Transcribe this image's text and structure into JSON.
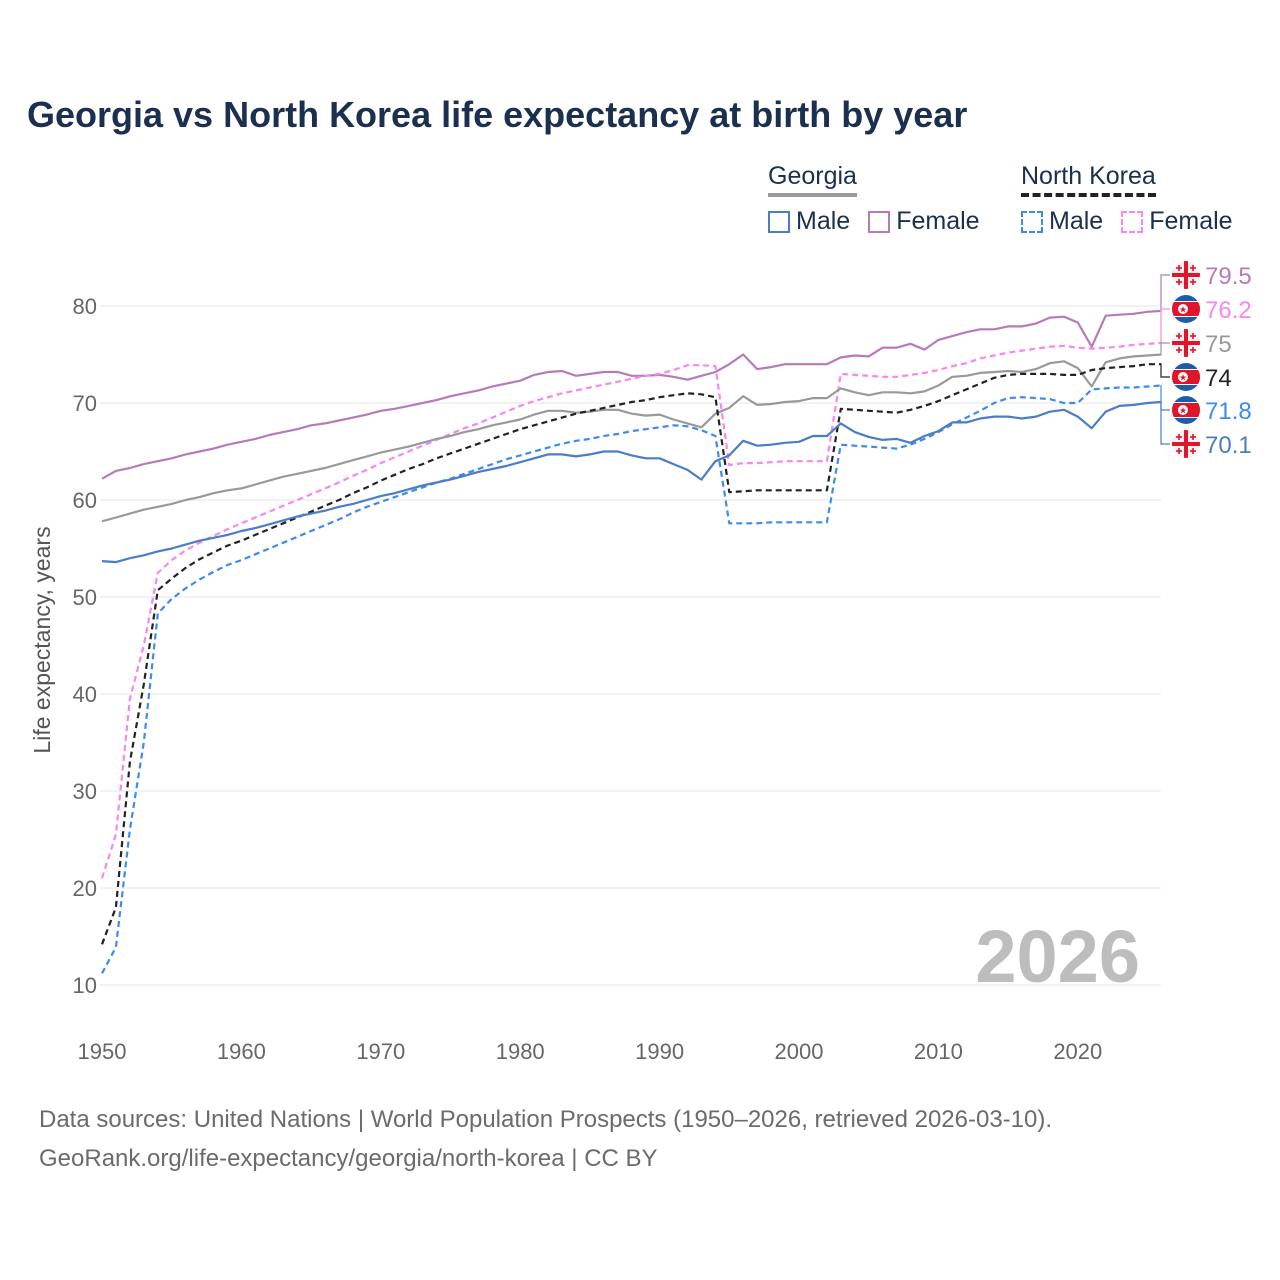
{
  "chart_data": {
    "type": "line",
    "title": "Georgia vs North Korea life expectancy at birth by year",
    "xlabel": "",
    "ylabel": "Life expectancy, years",
    "xlim": [
      1950,
      2026
    ],
    "ylim": [
      10,
      85
    ],
    "x_ticks": [
      "1950",
      "1960",
      "1970",
      "1980",
      "1990",
      "2000",
      "2010",
      "2020"
    ],
    "y_ticks": [
      "10",
      "20",
      "30",
      "40",
      "50",
      "60",
      "70",
      "80"
    ],
    "grid": true,
    "watermark_year": "2026",
    "legend": {
      "placement": "top-right",
      "groups": [
        {
          "name": "Georgia",
          "items": [
            "Male",
            "Female"
          ]
        },
        {
          "name": "North Korea",
          "items": [
            "Male",
            "Female"
          ]
        }
      ]
    },
    "x_start": 1950,
    "series": [
      {
        "name": "Georgia Female",
        "country": "Georgia",
        "color": "#b77ab8",
        "dashed": false,
        "end_label": "79.5",
        "values": [
          62.2,
          63.0,
          63.3,
          63.7,
          64.0,
          64.3,
          64.7,
          65.0,
          65.3,
          65.7,
          66.0,
          66.3,
          66.7,
          67.0,
          67.3,
          67.7,
          67.9,
          68.2,
          68.5,
          68.8,
          69.2,
          69.4,
          69.7,
          70.0,
          70.3,
          70.7,
          71.0,
          71.3,
          71.7,
          72.0,
          72.3,
          72.9,
          73.2,
          73.3,
          72.8,
          73.0,
          73.2,
          73.2,
          72.8,
          72.8,
          72.9,
          72.7,
          72.4,
          72.8,
          73.2,
          74.0,
          75.0,
          73.5,
          73.7,
          74.0,
          74.0,
          74.0,
          74.0,
          74.7,
          74.9,
          74.8,
          75.7,
          75.7,
          76.1,
          75.5,
          76.5,
          76.9,
          77.3,
          77.6,
          77.6,
          77.9,
          77.9,
          78.2,
          78.8,
          78.9,
          78.3,
          75.8,
          79.0,
          79.1,
          79.2,
          79.4,
          79.5
        ]
      },
      {
        "name": "North Korea Female",
        "country": "North Korea",
        "color": "#f986f0",
        "dashed": true,
        "end_label": "76.2",
        "values": [
          21.0,
          25.5,
          39.5,
          45.0,
          52.5,
          53.8,
          54.8,
          55.6,
          56.3,
          57.0,
          57.6,
          58.2,
          58.8,
          59.4,
          60.0,
          60.6,
          61.2,
          61.8,
          62.5,
          63.1,
          63.8,
          64.4,
          65.0,
          65.6,
          66.2,
          66.8,
          67.4,
          67.9,
          68.5,
          69.1,
          69.7,
          70.2,
          70.6,
          71.0,
          71.3,
          71.6,
          71.9,
          72.2,
          72.5,
          72.8,
          73.0,
          73.4,
          73.9,
          73.9,
          73.8,
          63.6,
          63.8,
          63.8,
          63.9,
          64.0,
          64.0,
          64.0,
          64.0,
          73.0,
          72.9,
          72.8,
          72.7,
          72.7,
          72.9,
          73.1,
          73.4,
          73.8,
          74.1,
          74.6,
          74.9,
          75.2,
          75.4,
          75.6,
          75.8,
          75.9,
          75.7,
          75.6,
          75.7,
          75.8,
          76.0,
          76.1,
          76.2
        ]
      },
      {
        "name": "Georgia",
        "country": "Georgia",
        "color": "#999999",
        "dashed": false,
        "end_label": "75",
        "values": [
          57.8,
          58.2,
          58.6,
          59.0,
          59.3,
          59.6,
          60.0,
          60.3,
          60.7,
          61.0,
          61.2,
          61.6,
          62.0,
          62.4,
          62.7,
          63.0,
          63.3,
          63.7,
          64.1,
          64.5,
          64.9,
          65.2,
          65.5,
          65.9,
          66.3,
          66.6,
          67.0,
          67.3,
          67.7,
          68.0,
          68.3,
          68.8,
          69.2,
          69.2,
          69.0,
          69.1,
          69.3,
          69.3,
          68.9,
          68.7,
          68.8,
          68.3,
          67.9,
          67.5,
          68.9,
          69.5,
          70.7,
          69.8,
          69.9,
          70.1,
          70.2,
          70.5,
          70.5,
          71.5,
          71.1,
          70.8,
          71.1,
          71.1,
          71.0,
          71.2,
          71.8,
          72.7,
          72.8,
          73.1,
          73.2,
          73.3,
          73.2,
          73.5,
          74.1,
          74.3,
          73.6,
          71.7,
          74.2,
          74.6,
          74.8,
          74.9,
          75.0
        ]
      },
      {
        "name": "North Korea",
        "country": "North Korea",
        "color": "#222222",
        "dashed": true,
        "end_label": "74",
        "values": [
          14.2,
          18.0,
          33.0,
          41.0,
          50.7,
          51.9,
          53.0,
          53.9,
          54.6,
          55.3,
          55.8,
          56.4,
          57.0,
          57.6,
          58.2,
          58.8,
          59.4,
          60.0,
          60.7,
          61.3,
          62.0,
          62.6,
          63.2,
          63.7,
          64.3,
          64.8,
          65.3,
          65.8,
          66.3,
          66.8,
          67.3,
          67.7,
          68.1,
          68.5,
          68.9,
          69.2,
          69.5,
          69.8,
          70.1,
          70.3,
          70.6,
          70.8,
          71.0,
          70.9,
          70.6,
          60.8,
          60.9,
          61.0,
          61.0,
          61.0,
          61.0,
          61.0,
          61.0,
          69.4,
          69.3,
          69.2,
          69.1,
          69.0,
          69.3,
          69.7,
          70.2,
          70.8,
          71.4,
          72.0,
          72.6,
          72.9,
          73.0,
          73.0,
          73.0,
          72.9,
          72.9,
          73.4,
          73.6,
          73.7,
          73.8,
          74.0,
          74.0
        ]
      },
      {
        "name": "North Korea Male",
        "country": "North Korea",
        "color": "#3b8bf0",
        "dashed": true,
        "end_label": "71.8",
        "values": [
          11.2,
          13.9,
          26.0,
          35.0,
          48.3,
          49.8,
          50.9,
          51.8,
          52.6,
          53.3,
          53.8,
          54.4,
          55.0,
          55.6,
          56.2,
          56.8,
          57.4,
          58.0,
          58.7,
          59.3,
          59.8,
          60.3,
          60.8,
          61.3,
          61.8,
          62.2,
          62.7,
          63.2,
          63.7,
          64.2,
          64.6,
          65.0,
          65.4,
          65.8,
          66.1,
          66.3,
          66.6,
          66.8,
          67.1,
          67.3,
          67.5,
          67.7,
          67.6,
          67.2,
          66.6,
          57.6,
          57.6,
          57.6,
          57.7,
          57.7,
          57.7,
          57.7,
          57.7,
          65.7,
          65.6,
          65.5,
          65.4,
          65.3,
          65.7,
          66.3,
          67.0,
          67.8,
          68.5,
          69.2,
          70.0,
          70.5,
          70.6,
          70.5,
          70.4,
          70.0,
          70.0,
          71.4,
          71.5,
          71.6,
          71.6,
          71.7,
          71.8
        ]
      },
      {
        "name": "Georgia Male",
        "country": "Georgia",
        "color": "#4a7cc7",
        "dashed": false,
        "end_label": "70.1",
        "values": [
          53.7,
          53.6,
          54.0,
          54.3,
          54.7,
          55.0,
          55.4,
          55.8,
          56.1,
          56.4,
          56.8,
          57.1,
          57.5,
          57.9,
          58.3,
          58.6,
          58.9,
          59.3,
          59.6,
          60.0,
          60.4,
          60.7,
          61.1,
          61.5,
          61.8,
          62.1,
          62.5,
          62.9,
          63.2,
          63.5,
          63.9,
          64.3,
          64.7,
          64.7,
          64.5,
          64.7,
          65.0,
          65.0,
          64.6,
          64.3,
          64.3,
          63.7,
          63.1,
          62.1,
          64.0,
          64.6,
          66.1,
          65.6,
          65.7,
          65.9,
          66.0,
          66.6,
          66.6,
          67.9,
          67.0,
          66.5,
          66.2,
          66.3,
          65.9,
          66.6,
          67.1,
          68.0,
          68.0,
          68.4,
          68.6,
          68.6,
          68.4,
          68.6,
          69.1,
          69.3,
          68.6,
          67.4,
          69.1,
          69.7,
          69.8,
          70.0,
          70.1
        ]
      }
    ]
  },
  "footer": {
    "line1": "Data sources: United Nations | World Population Prospects (1950–2026, retrieved 2026-03-10).",
    "line2": "GeoRank.org/life-expectancy/georgia/north-korea | CC BY"
  }
}
